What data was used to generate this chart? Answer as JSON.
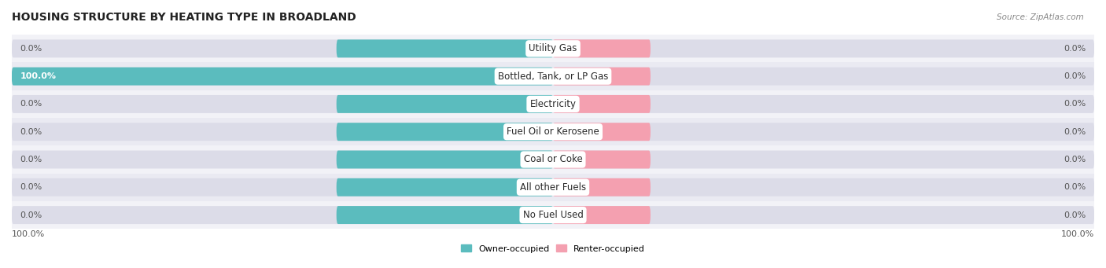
{
  "title": "HOUSING STRUCTURE BY HEATING TYPE IN BROADLAND",
  "source": "Source: ZipAtlas.com",
  "categories": [
    "Utility Gas",
    "Bottled, Tank, or LP Gas",
    "Electricity",
    "Fuel Oil or Kerosene",
    "Coal or Coke",
    "All other Fuels",
    "No Fuel Used"
  ],
  "owner_values": [
    0.0,
    100.0,
    0.0,
    0.0,
    0.0,
    0.0,
    0.0
  ],
  "renter_values": [
    0.0,
    0.0,
    0.0,
    0.0,
    0.0,
    0.0,
    0.0
  ],
  "owner_color": "#5bbcbe",
  "renter_color": "#f4a0b0",
  "bar_bg_color": "#dcdce8",
  "row_bg_colors": [
    "#f2f2f7",
    "#eaeaf2"
  ],
  "owner_label": "Owner-occupied",
  "renter_label": "Renter-occupied",
  "axis_label_left": "100.0%",
  "axis_label_right": "100.0%",
  "title_fontsize": 10,
  "source_fontsize": 7.5,
  "label_fontsize": 8,
  "cat_fontsize": 8.5,
  "bar_height": 0.62,
  "max_val": 100.0,
  "default_owner_pct": 40.0,
  "default_renter_pct": 18.0,
  "figsize": [
    14.06,
    3.41
  ],
  "dpi": 100
}
